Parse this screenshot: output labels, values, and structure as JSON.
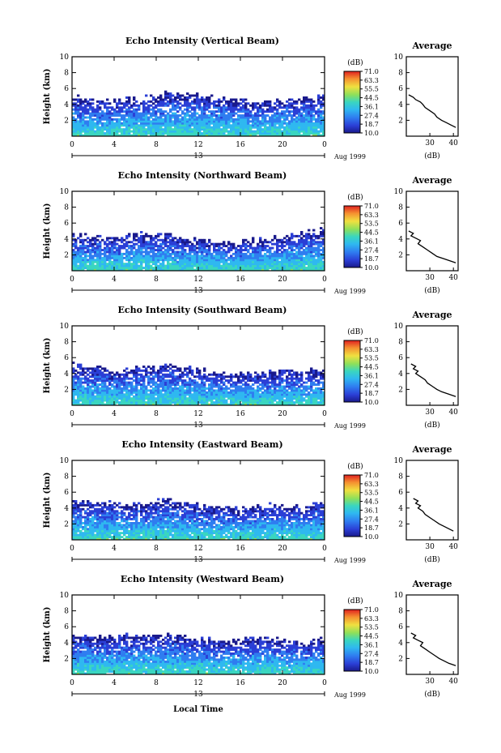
{
  "figure": {
    "xlabel_bottom": "Local Time"
  },
  "chart_data": [
    {
      "type": "heatmap",
      "title": "Echo Intensity (Vertical Beam)",
      "ylabel": "Height (km)",
      "xlim": [
        0,
        24
      ],
      "ylim": [
        0,
        10
      ],
      "x_ticks": [
        "0",
        "4",
        "8",
        "12",
        "16",
        "20",
        "0"
      ],
      "y_ticks": [
        "2",
        "4",
        "6",
        "8",
        "10"
      ],
      "date_day": "13",
      "date_label": "Aug 1999",
      "colorbar": {
        "unit": "(dB)",
        "ticks": [
          "71.0",
          "63.3",
          "55.5",
          "44.5",
          "36.1",
          "27.4",
          "18.7",
          "10.0"
        ],
        "range": [
          10.0,
          71.0
        ]
      },
      "echo_top_km": [
        5.0,
        4.5,
        4.3,
        4.6,
        4.9,
        5.3,
        5.4,
        5.0,
        4.6,
        4.3,
        4.2,
        4.4,
        4.7,
        4.9
      ],
      "average_profile": {
        "title": "Average",
        "xlabel": "(dB)",
        "xlim": [
          20,
          42
        ],
        "x_ticks": [
          "30",
          "40"
        ],
        "ylim": [
          0,
          10
        ],
        "y_ticks": [
          "2",
          "4",
          "6",
          "8",
          "10"
        ],
        "height_km": [
          5.2,
          4.9,
          4.6,
          4.3,
          4.0,
          3.6,
          3.2,
          2.8,
          2.4,
          2.0,
          1.7,
          1.4,
          1.1
        ],
        "db": [
          21,
          23,
          24,
          26,
          27,
          28,
          30,
          32,
          33,
          35,
          37,
          39,
          41
        ]
      }
    },
    {
      "type": "heatmap",
      "title": "Echo Intensity (Northward Beam)",
      "ylabel": "Height (km)",
      "xlim": [
        0,
        24
      ],
      "ylim": [
        0,
        10
      ],
      "x_ticks": [
        "0",
        "4",
        "8",
        "12",
        "16",
        "20",
        "0"
      ],
      "y_ticks": [
        "2",
        "4",
        "6",
        "8",
        "10"
      ],
      "date_day": "13",
      "date_label": "Aug 1999",
      "colorbar": {
        "unit": "(dB)",
        "ticks": [
          "71.0",
          "63.3",
          "53.5",
          "44.5",
          "36.1",
          "27.4",
          "18.7",
          "10.0"
        ],
        "range": [
          10.0,
          71.0
        ]
      },
      "echo_top_km": [
        4.5,
        4.2,
        4.0,
        4.5,
        4.6,
        4.4,
        4.0,
        3.6,
        3.5,
        3.7,
        3.9,
        4.2,
        4.8,
        5.0
      ],
      "average_profile": {
        "title": "Average",
        "xlabel": "(dB)",
        "xlim": [
          20,
          42
        ],
        "x_ticks": [
          "30",
          "40"
        ],
        "ylim": [
          0,
          10
        ],
        "y_ticks": [
          "2",
          "4",
          "6",
          "8",
          "10"
        ],
        "height_km": [
          5.0,
          4.7,
          4.4,
          4.1,
          3.8,
          3.4,
          3.0,
          2.6,
          2.2,
          1.8,
          1.5,
          1.2,
          1.0
        ],
        "db": [
          21,
          23,
          22,
          24,
          26,
          25,
          27,
          29,
          31,
          33,
          36,
          39,
          41
        ]
      }
    },
    {
      "type": "heatmap",
      "title": "Echo Intensity (Southward Beam)",
      "ylabel": "Height (km)",
      "xlim": [
        0,
        24
      ],
      "ylim": [
        0,
        10
      ],
      "x_ticks": [
        "0",
        "4",
        "8",
        "12",
        "16",
        "20",
        "0"
      ],
      "y_ticks": [
        "2",
        "4",
        "6",
        "8",
        "10"
      ],
      "date_day": "13",
      "date_label": "Aug 1999",
      "colorbar": {
        "unit": "(dB)",
        "ticks": [
          "71.0",
          "63.3",
          "53.5",
          "44.5",
          "36.1",
          "27.4",
          "18.7",
          "10.0"
        ],
        "range": [
          10.0,
          71.0
        ]
      },
      "echo_top_km": [
        5.2,
        4.6,
        4.5,
        4.4,
        4.8,
        5.0,
        4.6,
        4.2,
        4.0,
        3.9,
        4.1,
        4.3,
        4.2,
        4.5
      ],
      "average_profile": {
        "title": "Average",
        "xlabel": "(dB)",
        "xlim": [
          20,
          42
        ],
        "x_ticks": [
          "30",
          "40"
        ],
        "ylim": [
          0,
          10
        ],
        "y_ticks": [
          "2",
          "4",
          "6",
          "8",
          "10"
        ],
        "height_km": [
          5.2,
          4.9,
          4.6,
          4.3,
          4.0,
          3.6,
          3.2,
          2.8,
          2.4,
          2.0,
          1.7,
          1.4,
          1.1
        ],
        "db": [
          22,
          24,
          23,
          25,
          24,
          26,
          28,
          29,
          31,
          33,
          35,
          38,
          41
        ]
      }
    },
    {
      "type": "heatmap",
      "title": "Echo Intensity (Eastward Beam)",
      "ylabel": "Height (km)",
      "xlim": [
        0,
        24
      ],
      "ylim": [
        0,
        10
      ],
      "x_ticks": [
        "0",
        "4",
        "8",
        "12",
        "16",
        "20",
        "0"
      ],
      "y_ticks": [
        "2",
        "4",
        "6",
        "8",
        "10"
      ],
      "date_day": "13",
      "date_label": "Aug 1999",
      "colorbar": {
        "unit": "(dB)",
        "ticks": [
          "71.0",
          "63.3",
          "53.5",
          "44.5",
          "36.1",
          "27.4",
          "18.7",
          "10.0"
        ],
        "range": [
          10.0,
          71.0
        ]
      },
      "echo_top_km": [
        5.0,
        4.8,
        4.5,
        4.2,
        4.6,
        4.9,
        4.5,
        4.1,
        3.9,
        4.0,
        4.2,
        4.4,
        4.1,
        4.6
      ],
      "average_profile": {
        "title": "Average",
        "xlabel": "(dB)",
        "xlim": [
          20,
          42
        ],
        "x_ticks": [
          "30",
          "40"
        ],
        "ylim": [
          0,
          10
        ],
        "y_ticks": [
          "2",
          "4",
          "6",
          "8",
          "10"
        ],
        "height_km": [
          5.2,
          4.9,
          4.6,
          4.3,
          4.0,
          3.6,
          3.2,
          2.8,
          2.4,
          2.0,
          1.7,
          1.4,
          1.1
        ],
        "db": [
          23,
          25,
          24,
          26,
          25,
          27,
          28,
          30,
          32,
          34,
          36,
          38,
          40
        ]
      }
    },
    {
      "type": "heatmap",
      "title": "Echo Intensity (Westward Beam)",
      "ylabel": "Height (km)",
      "xlim": [
        0,
        24
      ],
      "ylim": [
        0,
        10
      ],
      "x_ticks": [
        "0",
        "4",
        "8",
        "12",
        "16",
        "20",
        "0"
      ],
      "y_ticks": [
        "2",
        "4",
        "6",
        "8",
        "10"
      ],
      "date_day": "13",
      "date_label": "Aug 1999",
      "colorbar": {
        "unit": "(dB)",
        "ticks": [
          "71.0",
          "63.3",
          "53.5",
          "44.5",
          "36.1",
          "27.4",
          "18.7",
          "10.0"
        ],
        "range": [
          10.0,
          71.0
        ]
      },
      "echo_top_km": [
        5.0,
        4.7,
        4.5,
        4.8,
        5.1,
        5.0,
        4.6,
        4.3,
        4.2,
        4.4,
        4.6,
        4.3,
        4.0,
        4.5
      ],
      "average_profile": {
        "title": "Average",
        "xlabel": "(dB)",
        "xlim": [
          20,
          42
        ],
        "x_ticks": [
          "30",
          "40"
        ],
        "ylim": [
          0,
          10
        ],
        "y_ticks": [
          "2",
          "4",
          "6",
          "8",
          "10"
        ],
        "height_km": [
          5.2,
          4.9,
          4.6,
          4.3,
          4.0,
          3.6,
          3.2,
          2.8,
          2.4,
          2.0,
          1.7,
          1.4,
          1.1
        ],
        "db": [
          22,
          24,
          23,
          25,
          27,
          26,
          28,
          30,
          32,
          34,
          36,
          38,
          41
        ]
      }
    }
  ]
}
